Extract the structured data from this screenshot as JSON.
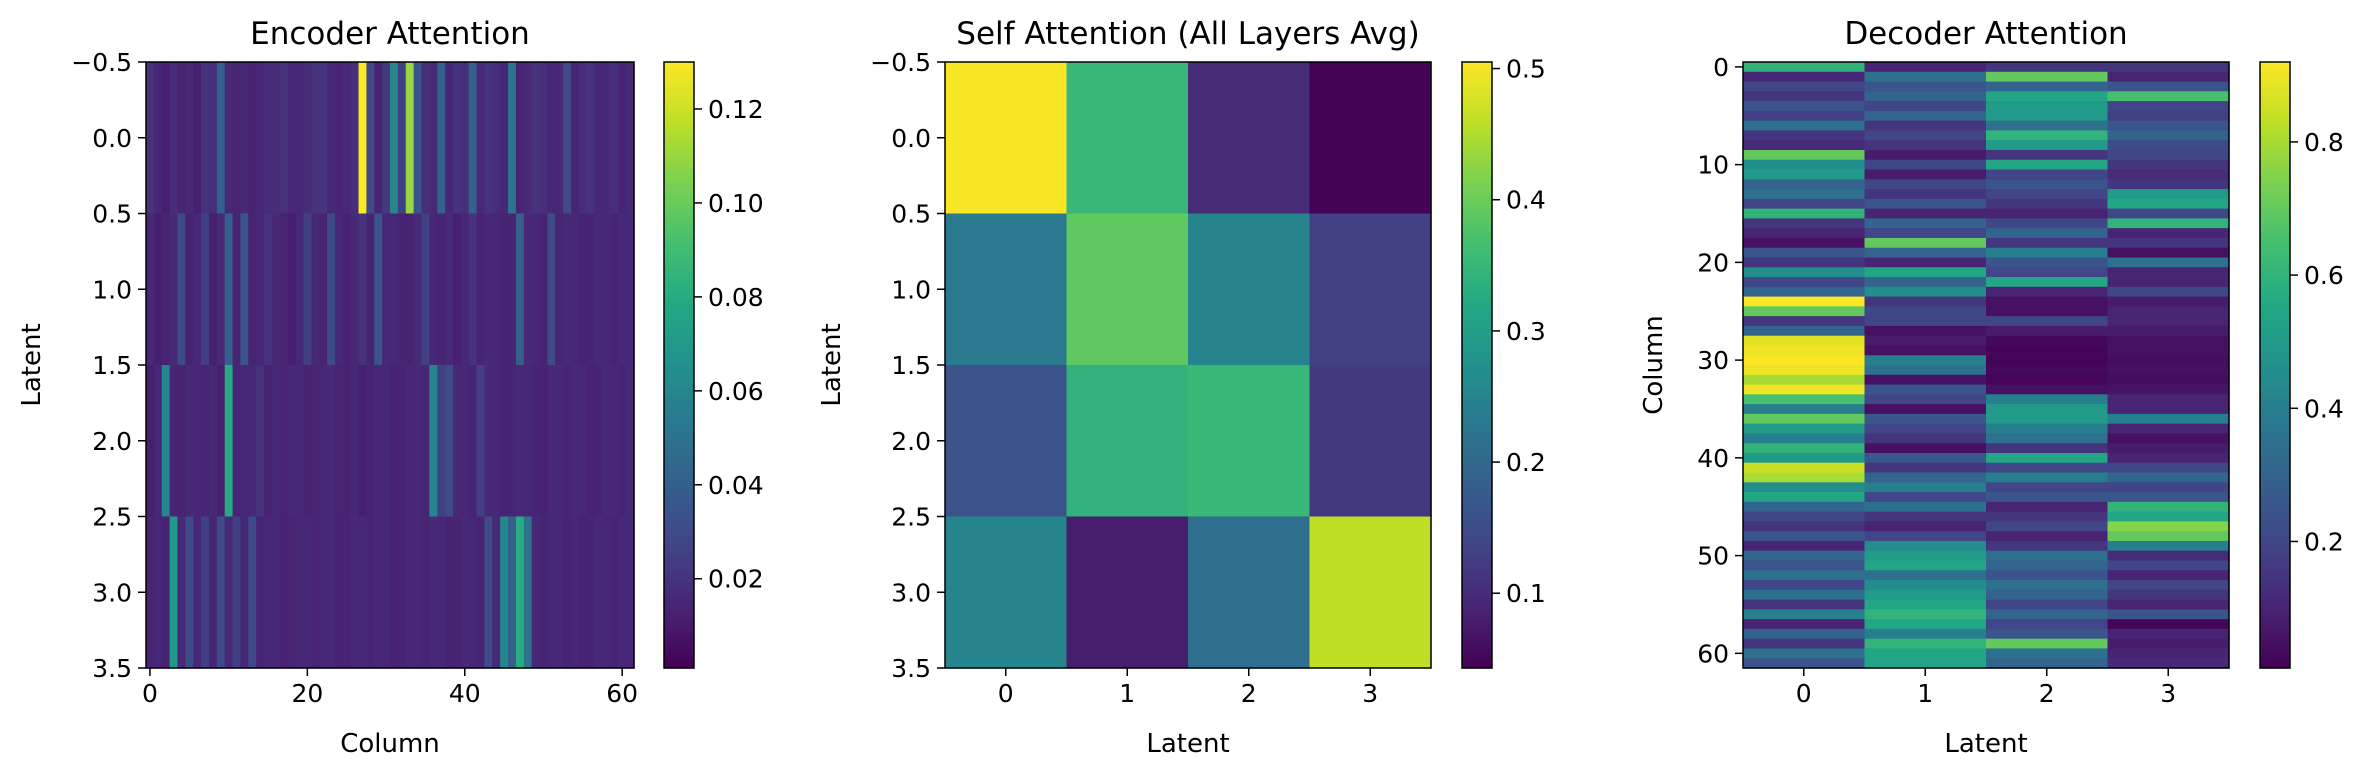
{
  "chart_data": [
    {
      "type": "heatmap",
      "title": "Encoder Attention",
      "xlabel": "Column",
      "ylabel": "Latent",
      "n_rows": 4,
      "n_cols": 62,
      "xlim": [
        -0.5,
        61.5
      ],
      "ylim": [
        3.5,
        -0.5
      ],
      "xticks": [
        0,
        20,
        40,
        60
      ],
      "yticks": [
        -0.5,
        0.0,
        0.5,
        1.0,
        1.5,
        2.0,
        2.5,
        3.0,
        3.5
      ],
      "ytick_labels": [
        "−0.5",
        "0.0",
        "0.5",
        "1.0",
        "1.5",
        "2.0",
        "2.5",
        "3.0",
        "3.5"
      ],
      "colormap": "viridis",
      "vmin": 0.001,
      "vmax": 0.13,
      "colorbar_ticks": [
        0.02,
        0.04,
        0.06,
        0.08,
        0.1,
        0.12
      ],
      "colorbar_tick_labels": [
        "0.02",
        "0.04",
        "0.06",
        "0.08",
        "0.10",
        "0.12"
      ],
      "values": [
        [
          0.02,
          0.015,
          0.012,
          0.018,
          0.014,
          0.016,
          0.012,
          0.02,
          0.018,
          0.04,
          0.015,
          0.014,
          0.016,
          0.013,
          0.015,
          0.017,
          0.018,
          0.02,
          0.016,
          0.015,
          0.018,
          0.019,
          0.02,
          0.015,
          0.014,
          0.016,
          0.018,
          0.13,
          0.03,
          0.014,
          0.022,
          0.06,
          0.025,
          0.11,
          0.035,
          0.018,
          0.016,
          0.04,
          0.015,
          0.02,
          0.018,
          0.04,
          0.016,
          0.02,
          0.018,
          0.015,
          0.05,
          0.014,
          0.016,
          0.02,
          0.018,
          0.015,
          0.016,
          0.03,
          0.014,
          0.018,
          0.02,
          0.015,
          0.016,
          0.018,
          0.014,
          0.016
        ],
        [
          0.015,
          0.012,
          0.014,
          0.016,
          0.03,
          0.013,
          0.015,
          0.025,
          0.012,
          0.016,
          0.04,
          0.014,
          0.035,
          0.013,
          0.015,
          0.02,
          0.016,
          0.014,
          0.012,
          0.015,
          0.025,
          0.016,
          0.014,
          0.03,
          0.015,
          0.013,
          0.016,
          0.02,
          0.014,
          0.035,
          0.016,
          0.015,
          0.014,
          0.013,
          0.016,
          0.025,
          0.015,
          0.014,
          0.016,
          0.012,
          0.015,
          0.02,
          0.014,
          0.016,
          0.015,
          0.013,
          0.014,
          0.04,
          0.016,
          0.015,
          0.013,
          0.03,
          0.014,
          0.016,
          0.015,
          0.013,
          0.014,
          0.016,
          0.015,
          0.014,
          0.016,
          0.015
        ],
        [
          0.012,
          0.015,
          0.06,
          0.014,
          0.013,
          0.016,
          0.015,
          0.014,
          0.016,
          0.012,
          0.08,
          0.014,
          0.015,
          0.016,
          0.02,
          0.013,
          0.015,
          0.014,
          0.016,
          0.015,
          0.013,
          0.014,
          0.015,
          0.016,
          0.014,
          0.013,
          0.015,
          0.012,
          0.014,
          0.016,
          0.015,
          0.013,
          0.014,
          0.016,
          0.015,
          0.014,
          0.06,
          0.025,
          0.03,
          0.016,
          0.015,
          0.014,
          0.025,
          0.016,
          0.015,
          0.013,
          0.014,
          0.016,
          0.015,
          0.014,
          0.013,
          0.016,
          0.015,
          0.014,
          0.016,
          0.015,
          0.013,
          0.014,
          0.016,
          0.015,
          0.014,
          0.016
        ],
        [
          0.014,
          0.015,
          0.013,
          0.07,
          0.016,
          0.03,
          0.015,
          0.025,
          0.014,
          0.03,
          0.016,
          0.025,
          0.015,
          0.03,
          0.014,
          0.016,
          0.015,
          0.013,
          0.014,
          0.016,
          0.015,
          0.014,
          0.016,
          0.015,
          0.013,
          0.014,
          0.016,
          0.015,
          0.014,
          0.016,
          0.015,
          0.013,
          0.014,
          0.016,
          0.015,
          0.014,
          0.016,
          0.015,
          0.013,
          0.014,
          0.016,
          0.015,
          0.014,
          0.03,
          0.016,
          0.06,
          0.04,
          0.08,
          0.05,
          0.016,
          0.014,
          0.015,
          0.016,
          0.014,
          0.015,
          0.013,
          0.014,
          0.016,
          0.015,
          0.014,
          0.016,
          0.015
        ]
      ]
    },
    {
      "type": "heatmap",
      "title": "Self Attention (All Layers Avg)",
      "xlabel": "Latent",
      "ylabel": "Latent",
      "n_rows": 4,
      "n_cols": 4,
      "xlim": [
        -0.5,
        3.5
      ],
      "ylim": [
        3.5,
        -0.5
      ],
      "xticks": [
        0,
        1,
        2,
        3
      ],
      "yticks": [
        -0.5,
        0.0,
        0.5,
        1.0,
        1.5,
        2.0,
        2.5,
        3.0,
        3.5
      ],
      "ytick_labels": [
        "−0.5",
        "0.0",
        "0.5",
        "1.0",
        "1.5",
        "2.0",
        "2.5",
        "3.0",
        "3.5"
      ],
      "colormap": "viridis",
      "vmin": 0.043,
      "vmax": 0.505,
      "colorbar_ticks": [
        0.1,
        0.2,
        0.3,
        0.4,
        0.5
      ],
      "colorbar_tick_labels": [
        "0.1",
        "0.2",
        "0.3",
        "0.4",
        "0.5"
      ],
      "values": [
        [
          0.5,
          0.35,
          0.1,
          0.045
        ],
        [
          0.23,
          0.39,
          0.25,
          0.13
        ],
        [
          0.16,
          0.34,
          0.35,
          0.12
        ],
        [
          0.25,
          0.08,
          0.21,
          0.46
        ]
      ]
    },
    {
      "type": "heatmap",
      "title": "Decoder Attention",
      "xlabel": "Latent",
      "ylabel": "Column",
      "n_rows": 62,
      "n_cols": 4,
      "xlim": [
        -0.5,
        3.5
      ],
      "ylim": [
        61.5,
        -0.5
      ],
      "xticks": [
        0,
        1,
        2,
        3
      ],
      "yticks": [
        0,
        10,
        20,
        30,
        40,
        50,
        60
      ],
      "colormap": "viridis",
      "vmin": 0.01,
      "vmax": 0.92,
      "colorbar_ticks": [
        0.2,
        0.4,
        0.6,
        0.8
      ],
      "colorbar_tick_labels": [
        "0.2",
        "0.4",
        "0.6",
        "0.8"
      ],
      "values": [
        [
          0.6,
          0.1,
          0.15,
          0.15
        ],
        [
          0.1,
          0.35,
          0.7,
          0.1
        ],
        [
          0.2,
          0.25,
          0.3,
          0.25
        ],
        [
          0.15,
          0.3,
          0.55,
          0.65
        ],
        [
          0.25,
          0.2,
          0.5,
          0.2
        ],
        [
          0.18,
          0.3,
          0.5,
          0.18
        ],
        [
          0.35,
          0.15,
          0.35,
          0.25
        ],
        [
          0.15,
          0.2,
          0.6,
          0.3
        ],
        [
          0.12,
          0.15,
          0.5,
          0.22
        ],
        [
          0.7,
          0.08,
          0.15,
          0.2
        ],
        [
          0.45,
          0.2,
          0.55,
          0.15
        ],
        [
          0.5,
          0.08,
          0.2,
          0.12
        ],
        [
          0.3,
          0.2,
          0.25,
          0.15
        ],
        [
          0.35,
          0.15,
          0.2,
          0.5
        ],
        [
          0.2,
          0.25,
          0.15,
          0.55
        ],
        [
          0.6,
          0.1,
          0.1,
          0.2
        ],
        [
          0.15,
          0.3,
          0.2,
          0.6
        ],
        [
          0.1,
          0.2,
          0.3,
          0.1
        ],
        [
          0.05,
          0.7,
          0.15,
          0.15
        ],
        [
          0.25,
          0.3,
          0.4,
          0.05
        ],
        [
          0.15,
          0.1,
          0.25,
          0.35
        ],
        [
          0.45,
          0.55,
          0.2,
          0.1
        ],
        [
          0.2,
          0.3,
          0.55,
          0.1
        ],
        [
          0.3,
          0.45,
          0.1,
          0.2
        ],
        [
          0.92,
          0.15,
          0.05,
          0.08
        ],
        [
          0.7,
          0.2,
          0.05,
          0.1
        ],
        [
          0.15,
          0.2,
          0.2,
          0.1
        ],
        [
          0.3,
          0.05,
          0.08,
          0.08
        ],
        [
          0.88,
          0.08,
          0.03,
          0.05
        ],
        [
          0.9,
          0.05,
          0.02,
          0.05
        ],
        [
          0.92,
          0.4,
          0.02,
          0.04
        ],
        [
          0.9,
          0.35,
          0.03,
          0.05
        ],
        [
          0.8,
          0.05,
          0.02,
          0.04
        ],
        [
          0.9,
          0.25,
          0.05,
          0.06
        ],
        [
          0.65,
          0.2,
          0.4,
          0.1
        ],
        [
          0.4,
          0.05,
          0.5,
          0.1
        ],
        [
          0.7,
          0.25,
          0.5,
          0.4
        ],
        [
          0.5,
          0.2,
          0.4,
          0.1
        ],
        [
          0.4,
          0.15,
          0.35,
          0.05
        ],
        [
          0.6,
          0.05,
          0.15,
          0.08
        ],
        [
          0.5,
          0.25,
          0.55,
          0.1
        ],
        [
          0.85,
          0.15,
          0.2,
          0.2
        ],
        [
          0.8,
          0.3,
          0.4,
          0.3
        ],
        [
          0.45,
          0.4,
          0.2,
          0.2
        ],
        [
          0.55,
          0.2,
          0.25,
          0.25
        ],
        [
          0.3,
          0.35,
          0.1,
          0.6
        ],
        [
          0.2,
          0.15,
          0.15,
          0.55
        ],
        [
          0.15,
          0.1,
          0.2,
          0.75
        ],
        [
          0.25,
          0.2,
          0.1,
          0.7
        ],
        [
          0.1,
          0.45,
          0.15,
          0.4
        ],
        [
          0.3,
          0.5,
          0.35,
          0.12
        ],
        [
          0.25,
          0.55,
          0.3,
          0.2
        ],
        [
          0.35,
          0.35,
          0.25,
          0.1
        ],
        [
          0.2,
          0.45,
          0.35,
          0.2
        ],
        [
          0.35,
          0.5,
          0.3,
          0.15
        ],
        [
          0.15,
          0.55,
          0.2,
          0.1
        ],
        [
          0.4,
          0.6,
          0.3,
          0.25
        ],
        [
          0.1,
          0.55,
          0.2,
          0.02
        ],
        [
          0.3,
          0.4,
          0.25,
          0.1
        ],
        [
          0.15,
          0.6,
          0.7,
          0.08
        ],
        [
          0.35,
          0.55,
          0.35,
          0.1
        ],
        [
          0.25,
          0.55,
          0.3,
          0.12
        ]
      ]
    }
  ]
}
